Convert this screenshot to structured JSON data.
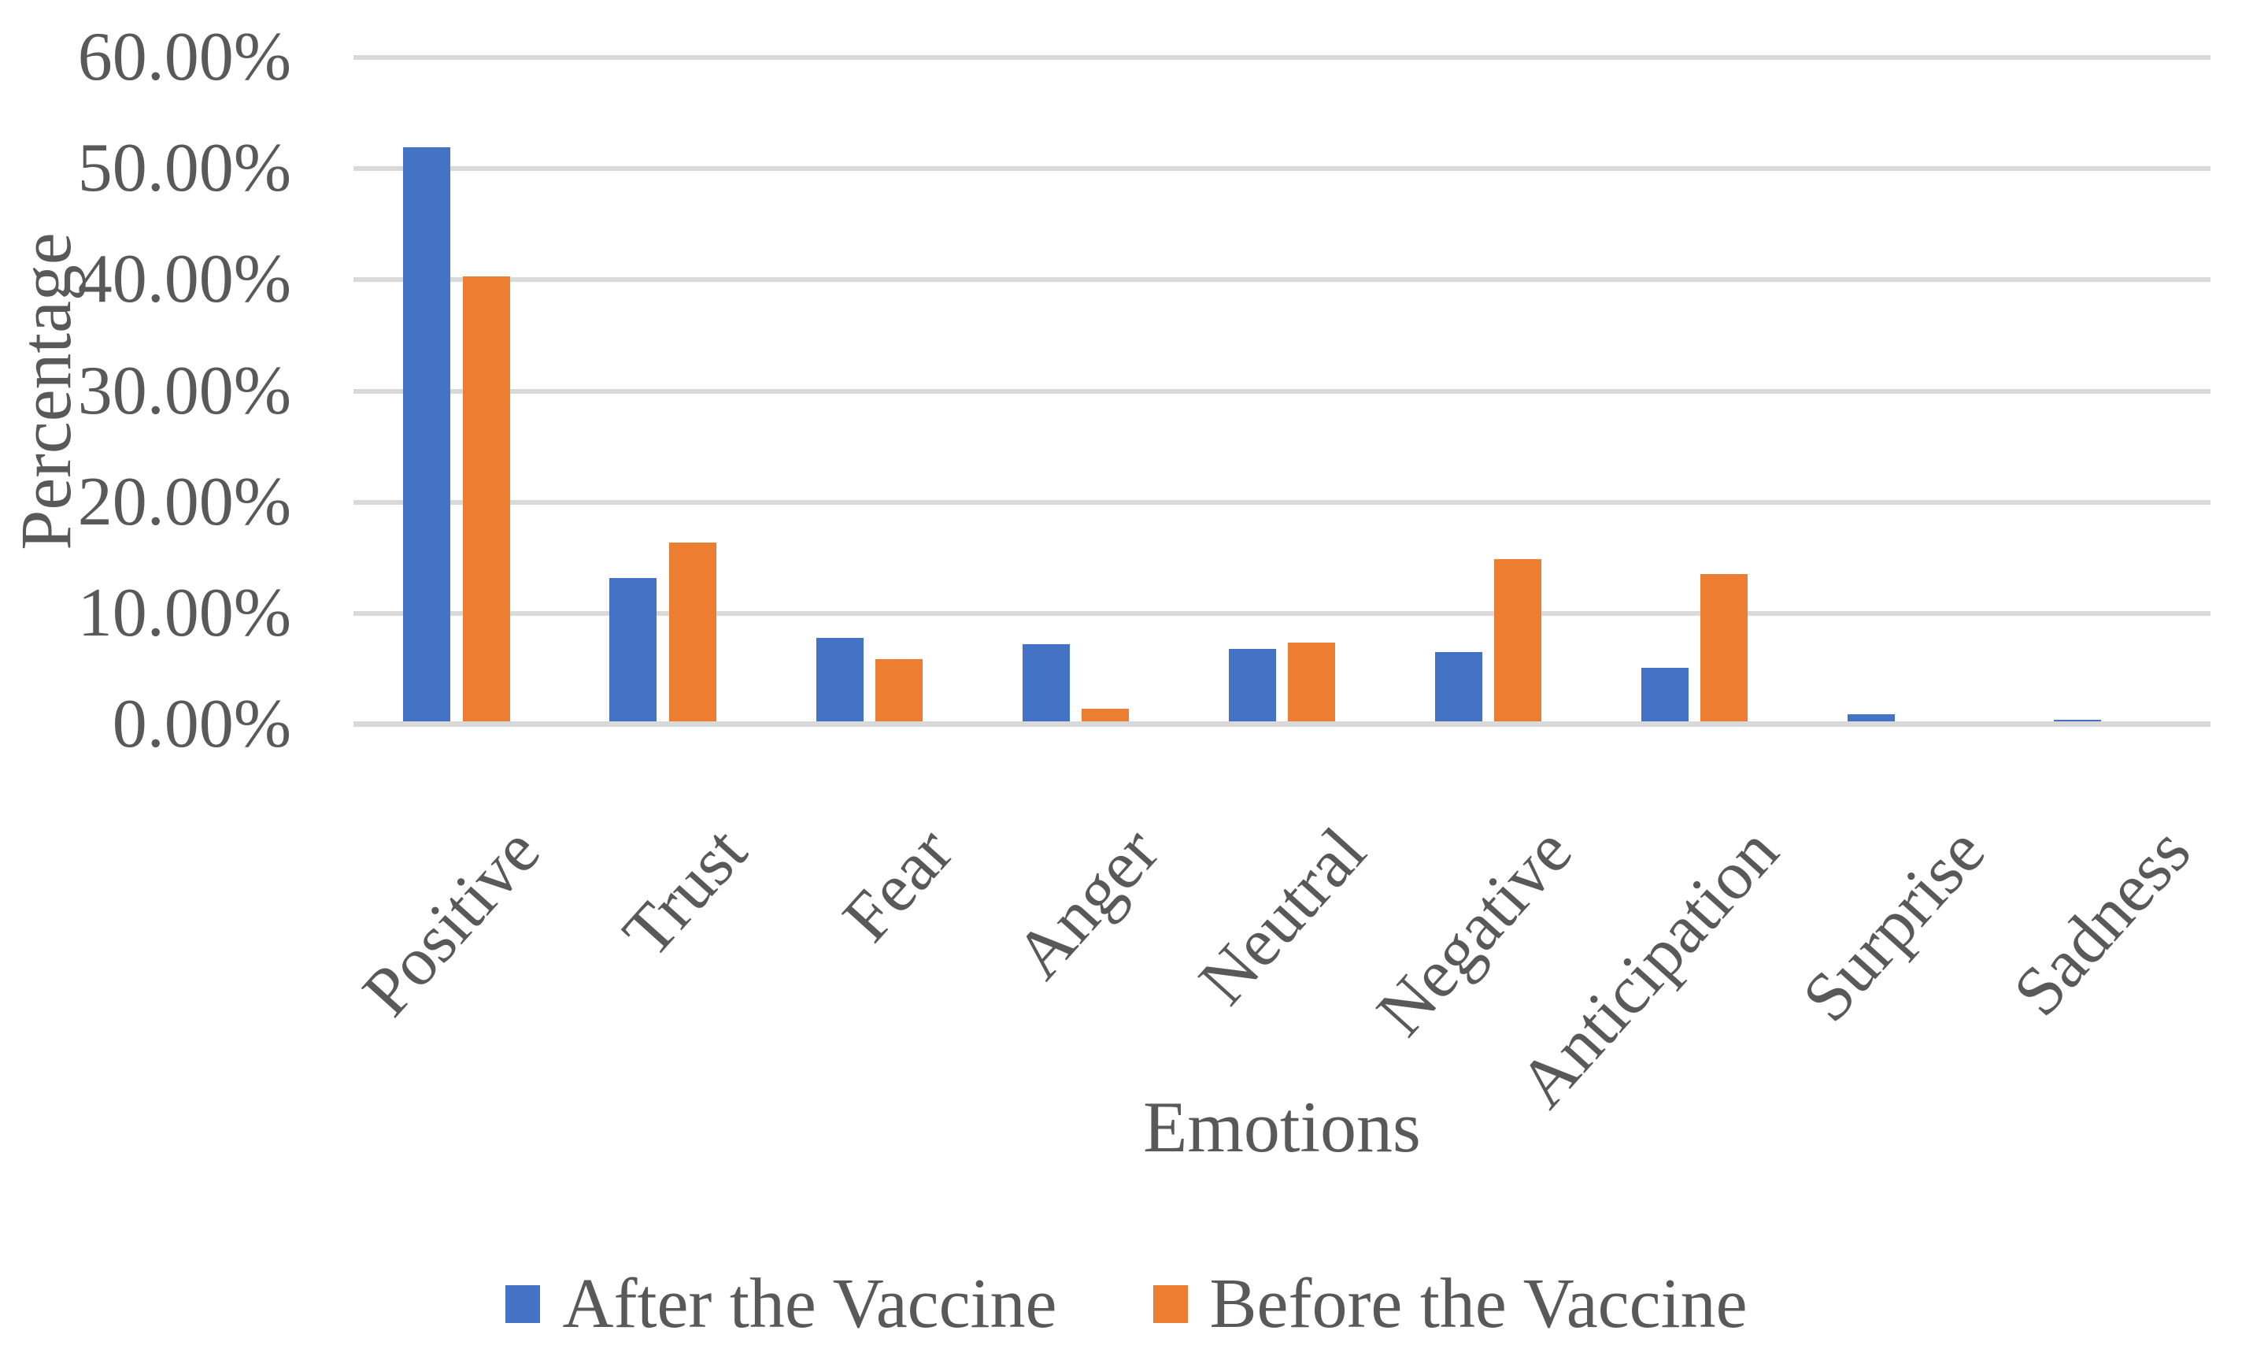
{
  "chart_data": {
    "type": "bar",
    "title": "",
    "xlabel": "Emotions",
    "ylabel": "Percentage",
    "categories": [
      "Positive",
      "Trust",
      "Fear",
      "Anger",
      "Neutral",
      "Negative",
      "Anticipation",
      "Surprise",
      "Sadness"
    ],
    "series": [
      {
        "name": "After the Vaccine",
        "color": "#4472C4",
        "values": [
          51.9,
          13.2,
          7.8,
          7.2,
          6.8,
          6.5,
          5.1,
          0.9,
          0.4
        ]
      },
      {
        "name": "Before the Vaccine",
        "color": "#ED7D31",
        "values": [
          40.3,
          16.4,
          5.9,
          1.4,
          7.4,
          14.9,
          13.5,
          0,
          0
        ]
      }
    ],
    "ylim": [
      0,
      60
    ],
    "ytick_step": 10,
    "yticks": [
      {
        "value": 0,
        "label": "0.00%"
      },
      {
        "value": 10,
        "label": "10.00%"
      },
      {
        "value": 20,
        "label": "20.00%"
      },
      {
        "value": 30,
        "label": "30.00%"
      },
      {
        "value": 40,
        "label": "40.00%"
      },
      {
        "value": 50,
        "label": "50.00%"
      },
      {
        "value": 60,
        "label": "60.00%"
      }
    ],
    "grid": true,
    "legend_position": "bottom"
  },
  "styles": {
    "text_color": "#595959",
    "grid_color": "#D9D9D9",
    "background": "#FFFFFF",
    "series_colors": {
      "after": "#4472C4",
      "before": "#ED7D31"
    }
  }
}
